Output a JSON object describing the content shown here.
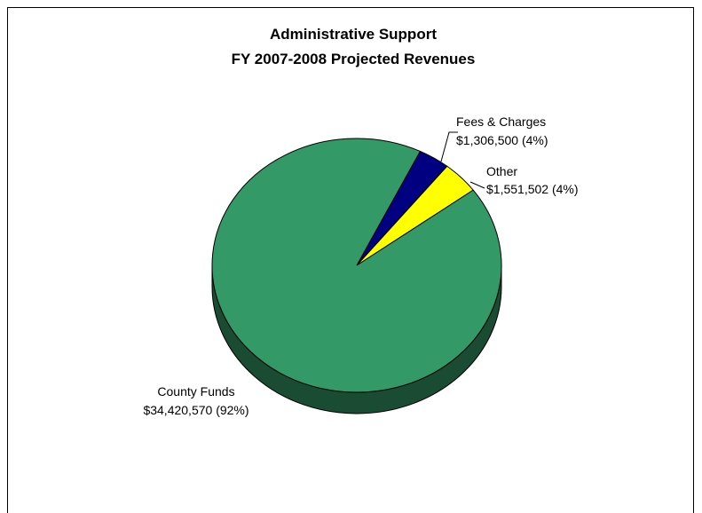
{
  "chart_data": {
    "type": "pie",
    "title": [
      "Administrative Support",
      "FY 2007-2008 Projected Revenues"
    ],
    "slices": [
      {
        "label": "Fees & Charges",
        "value": 1306500,
        "value_text": "$1,306,500 (4%)",
        "color": "#000080",
        "side_color": "#00003f"
      },
      {
        "label": "Other",
        "value": 1551502,
        "value_text": "$1,551,502 (4%)",
        "color": "#ffff00",
        "side_color": "#7f7f00"
      },
      {
        "label": "County Funds",
        "value": 34420570,
        "value_text": "$34,420,570 (92%)",
        "color": "#339966",
        "side_color": "#1a4c33"
      }
    ],
    "legend": "none",
    "style": "3d"
  }
}
